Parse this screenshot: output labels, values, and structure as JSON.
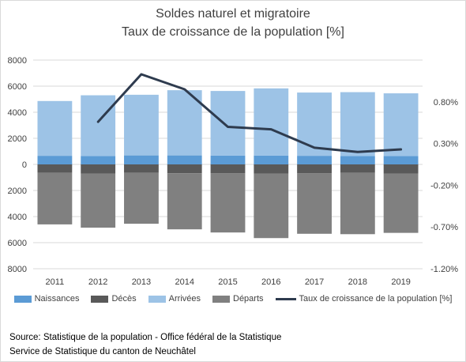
{
  "title": "Soldes naturel et migratoire",
  "subtitle": "Taux de croissance de la population [%]",
  "colors": {
    "Naissances": "#5b9bd5",
    "Décès": "#595959",
    "Arrivées": "#9dc3e6",
    "Départs": "#808080",
    "Taux de croissance de la population [%]": "#2e3b4e"
  },
  "chart_data": {
    "type": "bar",
    "categories": [
      "2011",
      "2012",
      "2013",
      "2014",
      "2015",
      "2016",
      "2017",
      "2018",
      "2019"
    ],
    "series": [
      {
        "name": "Naissances",
        "values": [
          660,
          650,
          690,
          690,
          680,
          680,
          660,
          640,
          650
        ]
      },
      {
        "name": "Décès",
        "values": [
          650,
          700,
          650,
          680,
          670,
          700,
          670,
          650,
          700
        ]
      },
      {
        "name": "Arrivées",
        "values": [
          4200,
          4650,
          4650,
          5000,
          4950,
          5150,
          4850,
          4900,
          4800
        ]
      },
      {
        "name": "Départs",
        "values": [
          3950,
          4150,
          3900,
          4300,
          4550,
          4950,
          4650,
          4700,
          4550
        ]
      }
    ],
    "line_series": {
      "name": "Taux de croissance de la population [%]",
      "values": [
        null,
        0.56,
        1.13,
        0.95,
        0.5,
        0.47,
        0.25,
        0.2,
        0.23
      ]
    },
    "y_axis": {
      "min": -8000,
      "max": 8000,
      "ticks": [
        8000,
        6000,
        4000,
        2000,
        0,
        2000,
        4000,
        6000,
        8000
      ]
    },
    "y2_axis": {
      "min": -1.2,
      "max": 1.3,
      "ticks": [
        "0.80%",
        "0.30%",
        "-0.20%",
        "-0.70%",
        "-1.20%"
      ],
      "tick_values": [
        0.8,
        0.3,
        -0.2,
        -0.7,
        -1.2
      ]
    },
    "grid": true,
    "legend_position": "bottom"
  },
  "source": {
    "line1": "Source: Statistique de la population - Office fédéral de la Statistique",
    "line2": "Service de Statistique du canton de Neuchâtel"
  }
}
